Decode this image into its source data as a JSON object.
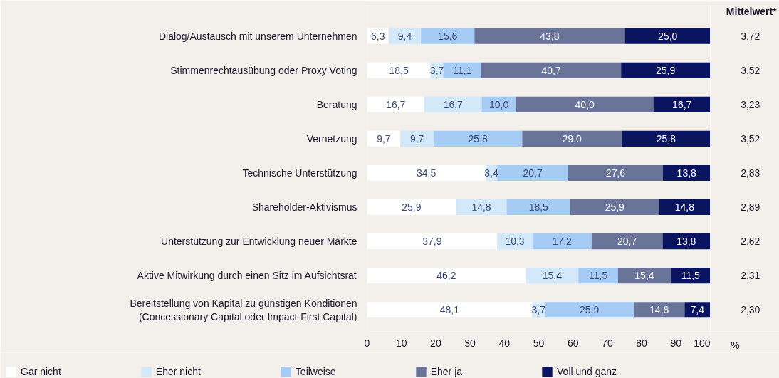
{
  "chart_data": {
    "type": "bar",
    "orientation": "horizontal",
    "stacked": true,
    "categories": [
      "Dialog/Austausch mit unserem Unternehmen",
      "Stimmenrechtausübung oder Proxy Voting",
      "Beratung",
      "Vernetzung",
      "Technische Unterstützung",
      "Shareholder-Aktivismus",
      "Unterstützung zur Entwicklung neuer Märkte",
      "Aktive Mitwirkung durch einen Sitz im Aufsichtsrat",
      "Bereitstellung von Kapital zu günstigen Konditionen\n(Concessionary Capital oder Impact-First Capital)"
    ],
    "series": [
      {
        "name": "Gar nicht",
        "color": "#ffffff",
        "values": [
          6.3,
          18.5,
          16.7,
          9.7,
          34.5,
          25.9,
          37.9,
          46.2,
          48.1
        ],
        "value_labels": [
          "6,3",
          "18,5",
          "16,7",
          "9,7",
          "34,5",
          "25,9",
          "37,9",
          "46,2",
          "48,1"
        ]
      },
      {
        "name": "Eher nicht",
        "color": "#d3e8f8",
        "values": [
          9.4,
          3.7,
          16.7,
          9.7,
          3.4,
          14.8,
          10.3,
          15.4,
          3.7
        ],
        "value_labels": [
          "9,4",
          "3,7",
          "16,7",
          "9,7",
          "3,4",
          "14,8",
          "10,3",
          "15,4",
          "3,7"
        ]
      },
      {
        "name": "Teilweise",
        "color": "#a6cbf5",
        "values": [
          15.6,
          11.1,
          10.0,
          25.8,
          20.7,
          18.5,
          17.2,
          11.5,
          25.9
        ],
        "value_labels": [
          "15,6",
          "11,1",
          "10,0",
          "25,8",
          "20,7",
          "18,5",
          "17,2",
          "11,5",
          "25,9"
        ]
      },
      {
        "name": "Eher ja",
        "color": "#6a7499",
        "values": [
          43.8,
          40.7,
          40.0,
          29.0,
          27.6,
          25.9,
          20.7,
          15.4,
          14.8
        ],
        "value_labels": [
          "43,8",
          "40,7",
          "40,0",
          "29,0",
          "27,6",
          "25,9",
          "20,7",
          "15,4",
          "14,8"
        ]
      },
      {
        "name": "Voll und ganz",
        "color": "#0b145e",
        "values": [
          25.0,
          25.9,
          16.7,
          25.8,
          13.8,
          14.8,
          13.8,
          11.5,
          7.4
        ],
        "value_labels": [
          "25,0",
          "25,9",
          "16,7",
          "25,8",
          "13,8",
          "14,8",
          "13,8",
          "11,5",
          "7,4"
        ]
      }
    ],
    "xlim": [
      0,
      100
    ],
    "xticks": [
      0,
      10,
      20,
      30,
      40,
      50,
      60,
      70,
      80,
      90,
      100
    ],
    "xlabel": "%",
    "annotations": [
      "Mittelwert*",
      "3,72",
      "3,52",
      "3,23",
      "3,52",
      "2,83",
      "2,89",
      "2,62",
      "2,31",
      "2,30"
    ],
    "legend": "bottom",
    "grid": false
  }
}
